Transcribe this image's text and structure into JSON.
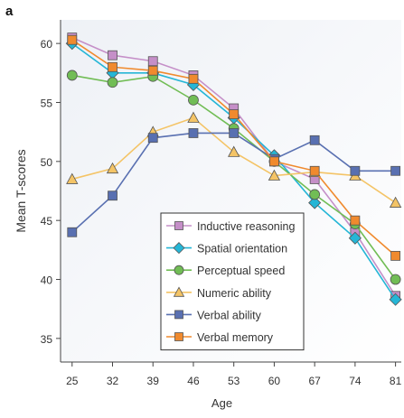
{
  "panel_label": "a",
  "chart_data": {
    "type": "line",
    "xlabel": "Age",
    "ylabel": "Mean T-scores",
    "x": [
      25,
      32,
      39,
      46,
      53,
      60,
      67,
      74,
      81
    ],
    "x_tick_labels": [
      "25",
      "32",
      "39",
      "46",
      "53",
      "60",
      "67",
      "74",
      "81"
    ],
    "y_ticks": [
      35,
      40,
      45,
      50,
      55,
      60
    ],
    "ylim": [
      33,
      62
    ],
    "grid": false,
    "legend_position": "bottom-center",
    "series": [
      {
        "name": "Inductive reasoning",
        "color": "#c58fc8",
        "marker": "square",
        "values": [
          60.5,
          59,
          58.5,
          57.3,
          54.5,
          50,
          48.5,
          44,
          38.6
        ]
      },
      {
        "name": "Spatial orientation",
        "color": "#25b6d6",
        "marker": "diamond",
        "values": [
          60,
          57.5,
          57.5,
          56.5,
          53.7,
          50.5,
          46.5,
          43.5,
          38.3
        ]
      },
      {
        "name": "Perceptual speed",
        "color": "#71bd55",
        "marker": "circle",
        "values": [
          57.3,
          56.7,
          57.2,
          55.2,
          52.8,
          50,
          47.2,
          44.7,
          40
        ]
      },
      {
        "name": "Numeric ability",
        "color": "#f4c466",
        "marker": "triangle",
        "values": [
          48.5,
          49.4,
          52.5,
          53.7,
          50.8,
          48.8,
          49.1,
          48.8,
          46.5
        ]
      },
      {
        "name": "Verbal ability",
        "color": "#5970b1",
        "marker": "square",
        "values": [
          44,
          47.1,
          52,
          52.4,
          52.4,
          50.2,
          51.8,
          49.2,
          49.2
        ]
      },
      {
        "name": "Verbal memory",
        "color": "#f08a2e",
        "marker": "square",
        "values": [
          60.3,
          58,
          57.7,
          57,
          54,
          50,
          49.2,
          45,
          42
        ]
      }
    ]
  }
}
